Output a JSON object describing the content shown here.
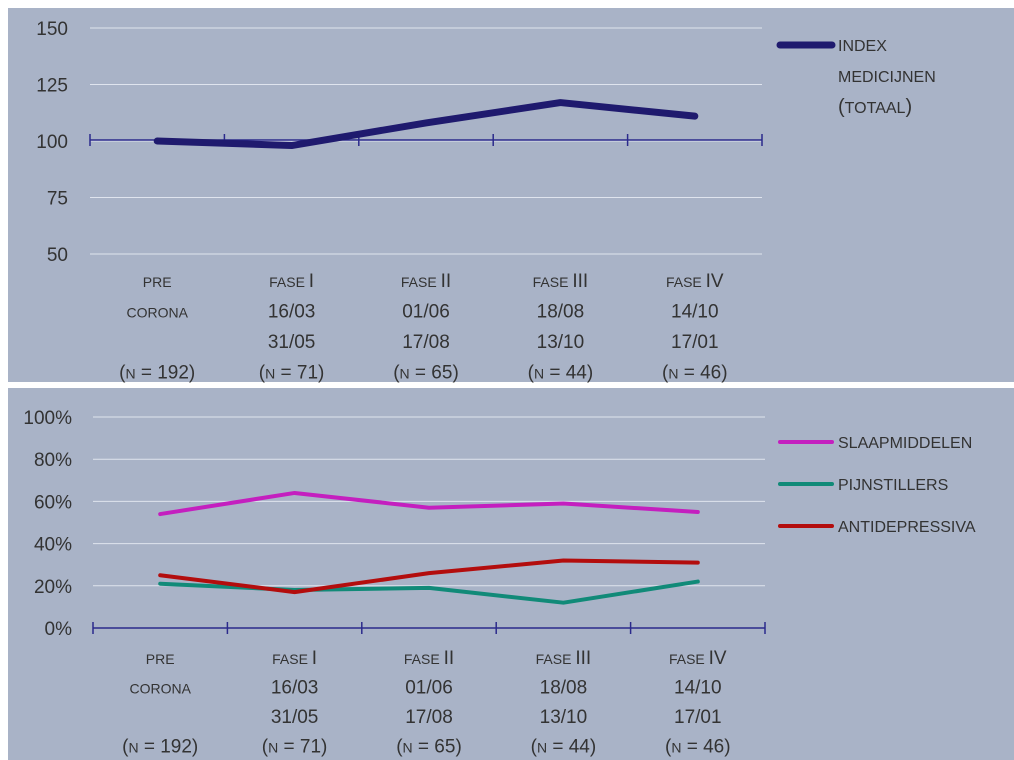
{
  "categories": [
    {
      "line1": "PRE",
      "line2": "CORONA",
      "line3": "",
      "n_prefix": "(",
      "n_letter": "N",
      "n_rest": " = 192)"
    },
    {
      "line1": "FASE I",
      "line2": "16/03",
      "line3": "31/05",
      "n_prefix": "(",
      "n_letter": "N",
      "n_rest": " = 71)"
    },
    {
      "line1": "FASE II",
      "line2": "01/06",
      "line3": "17/08",
      "n_prefix": "(",
      "n_letter": "N",
      "n_rest": " = 65)"
    },
    {
      "line1": "FASE III",
      "line2": "18/08",
      "line3": "13/10",
      "n_prefix": "(",
      "n_letter": "N",
      "n_rest": " = 44)"
    },
    {
      "line1": "FASE IV",
      "line2": "14/10",
      "line3": "17/01",
      "n_prefix": "(",
      "n_letter": "N",
      "n_rest": " = 46)"
    }
  ],
  "chart_data": [
    {
      "type": "line",
      "title": "",
      "xlabel": "",
      "ylabel": "",
      "ylim": [
        50,
        150
      ],
      "yticks": [
        "50",
        "75",
        "100",
        "125",
        "150"
      ],
      "grid": true,
      "legend_position": "right",
      "x": [
        "PRE CORONA (N = 192)",
        "FASE I 16/03 31/05 (N = 71)",
        "FASE II 01/06 17/08 (N = 65)",
        "FASE III 18/08 13/10 (N = 44)",
        "FASE IV 14/10 17/01 (N = 46)"
      ],
      "series": [
        {
          "name": "INDEX MEDICIJNEN (TOTAAL)",
          "color": "#1f1a6e",
          "values": [
            100,
            98,
            108,
            117,
            111
          ]
        }
      ]
    },
    {
      "type": "line",
      "title": "",
      "xlabel": "",
      "ylabel": "",
      "ylim": [
        0,
        100
      ],
      "yticks": [
        "0%",
        "20%",
        "40%",
        "60%",
        "80%",
        "100%"
      ],
      "grid": true,
      "legend_position": "right",
      "x": [
        "PRE CORONA (N = 192)",
        "FASE I 16/03 31/05 (N = 71)",
        "FASE II 01/06 17/08 (N = 65)",
        "FASE III 18/08 13/10 (N = 44)",
        "FASE IV 14/10 17/01 (N = 46)"
      ],
      "series": [
        {
          "name": "SLAAPMIDDELEN",
          "color": "#c41fbf",
          "values": [
            54,
            64,
            57,
            59,
            55
          ]
        },
        {
          "name": "PIJNSTILLERS",
          "color": "#118a78",
          "values": [
            21,
            18,
            19,
            12,
            22
          ]
        },
        {
          "name": "ANTIDEPRESSIVA",
          "color": "#b30d0d",
          "values": [
            25,
            17,
            26,
            32,
            31
          ]
        }
      ]
    }
  ]
}
